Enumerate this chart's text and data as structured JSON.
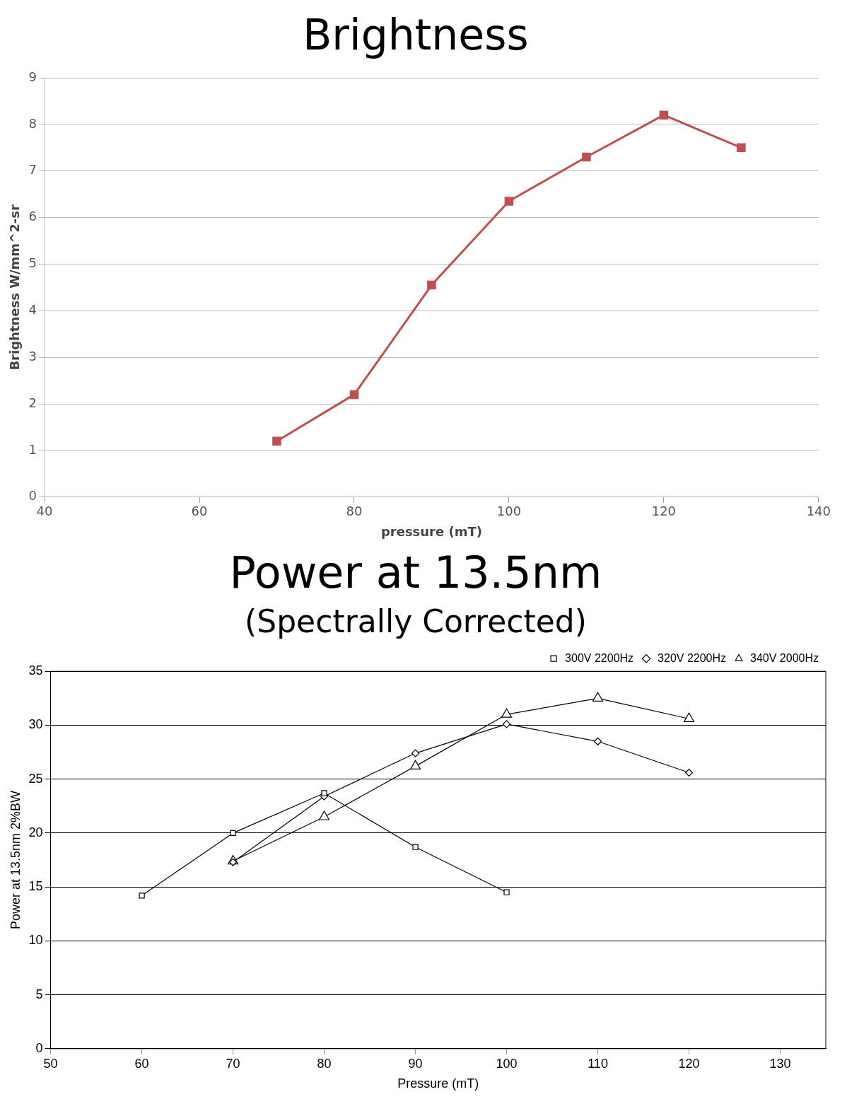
{
  "chart_data": [
    {
      "type": "line",
      "title": "Brightness",
      "xlabel": "pressure (mT)",
      "ylabel": "Brightness W/mm^2-sr",
      "x": [
        70,
        80,
        90,
        100,
        110,
        120,
        130
      ],
      "series": [
        {
          "color": "#c0504d",
          "marker": "square",
          "values": [
            1.2,
            2.2,
            4.55,
            6.35,
            7.3,
            8.2,
            7.5
          ]
        }
      ],
      "xlim": [
        40,
        140
      ],
      "xticks": [
        40,
        60,
        80,
        100,
        120,
        140
      ],
      "ylim": [
        0,
        9
      ],
      "yticks": [
        0,
        1,
        2,
        3,
        4,
        5,
        6,
        7,
        8,
        9
      ],
      "grid": "y",
      "legend": false
    },
    {
      "type": "line",
      "title": "Power at 13.5nm",
      "subtitle": "(Spectrally Corrected)",
      "xlabel": "Pressure (mT)",
      "ylabel": "Power at 13.5nm 2%BW",
      "series": [
        {
          "name": "300V 2200Hz",
          "color": "#000000",
          "marker": "square",
          "x": [
            60,
            70,
            80,
            90,
            100
          ],
          "values": [
            14.2,
            20.0,
            23.7,
            18.7,
            14.5
          ]
        },
        {
          "name": "320V 2200Hz",
          "color": "#000000",
          "marker": "diamond",
          "x": [
            70,
            80,
            90,
            100,
            110,
            120
          ],
          "values": [
            17.3,
            23.4,
            27.4,
            30.1,
            28.5,
            25.6
          ]
        },
        {
          "name": "340V 2000Hz",
          "color": "#000000",
          "marker": "triangle",
          "x": [
            70,
            80,
            90,
            100,
            110,
            120
          ],
          "values": [
            17.4,
            21.5,
            26.2,
            31.0,
            32.5,
            30.6
          ]
        }
      ],
      "xlim": [
        50,
        135
      ],
      "xticks": [
        50,
        60,
        70,
        80,
        90,
        100,
        110,
        120,
        130
      ],
      "ylim": [
        0,
        35
      ],
      "yticks": [
        0,
        5,
        10,
        15,
        20,
        25,
        30,
        35
      ],
      "grid": "y",
      "legend": "top right"
    }
  ]
}
